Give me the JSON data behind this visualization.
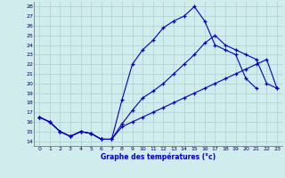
{
  "title": "Graphe des températures (°c)",
  "bg": "#d0ecec",
  "grid_color": "#a8d0d0",
  "lc": "#0000bb",
  "xlim": [
    -0.5,
    23.5
  ],
  "ylim": [
    13.5,
    28.5
  ],
  "xticks": [
    0,
    1,
    2,
    3,
    4,
    5,
    6,
    7,
    8,
    9,
    10,
    11,
    12,
    13,
    14,
    15,
    16,
    17,
    18,
    19,
    20,
    21,
    22,
    23
  ],
  "yticks": [
    14,
    15,
    16,
    17,
    18,
    19,
    20,
    21,
    22,
    23,
    24,
    25,
    26,
    27,
    28
  ],
  "line1_x": [
    0,
    1,
    2,
    3,
    4,
    5,
    6,
    7,
    8,
    9,
    10,
    11,
    12,
    13,
    14,
    15,
    16,
    17,
    18,
    19,
    20,
    21
  ],
  "line1_y": [
    16.5,
    16.0,
    15.0,
    14.5,
    15.0,
    14.8,
    14.2,
    14.2,
    18.3,
    22.0,
    23.5,
    24.5,
    25.8,
    26.5,
    27.0,
    28.0,
    26.5,
    24.0,
    23.5,
    23.0,
    20.5,
    19.5
  ],
  "line2_x": [
    0,
    1,
    2,
    3,
    4,
    5,
    6,
    7,
    8,
    9,
    10,
    11,
    12,
    13,
    14,
    15,
    16,
    17,
    18,
    19,
    20,
    21,
    22,
    23
  ],
  "line2_y": [
    16.5,
    16.0,
    15.0,
    14.5,
    15.0,
    14.8,
    14.2,
    14.2,
    15.8,
    17.2,
    18.5,
    19.2,
    20.0,
    21.0,
    22.0,
    23.0,
    24.2,
    25.0,
    24.0,
    23.5,
    23.0,
    22.5,
    20.0,
    19.5
  ],
  "line3_x": [
    0,
    1,
    2,
    3,
    4,
    5,
    6,
    7,
    8,
    9,
    10,
    11,
    12,
    13,
    14,
    15,
    16,
    17,
    18,
    19,
    20,
    21,
    22,
    23
  ],
  "line3_y": [
    16.5,
    16.0,
    15.0,
    14.5,
    15.0,
    14.8,
    14.2,
    14.2,
    15.5,
    16.0,
    16.5,
    17.0,
    17.5,
    18.0,
    18.5,
    19.0,
    19.5,
    20.0,
    20.5,
    21.0,
    21.5,
    22.0,
    22.5,
    19.5
  ]
}
